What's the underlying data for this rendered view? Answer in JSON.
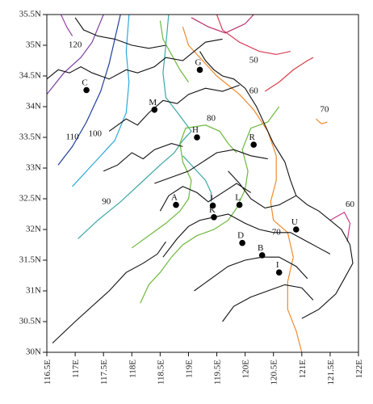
{
  "map": {
    "lon_range": [
      116.5,
      122.0
    ],
    "lat_range": [
      30.0,
      35.5
    ],
    "x_ticks": [
      {
        "v": 116.5,
        "label": "116.5E"
      },
      {
        "v": 117.0,
        "label": "117E"
      },
      {
        "v": 117.5,
        "label": "117.5E"
      },
      {
        "v": 118.0,
        "label": "118E"
      },
      {
        "v": 118.5,
        "label": "118.5E"
      },
      {
        "v": 119.0,
        "label": "119E"
      },
      {
        "v": 119.5,
        "label": "119.5E"
      },
      {
        "v": 120.0,
        "label": "120E"
      },
      {
        "v": 120.5,
        "label": "120.5E"
      },
      {
        "v": 121.0,
        "label": "121E"
      },
      {
        "v": 121.5,
        "label": "121.5E"
      },
      {
        "v": 122.0,
        "label": "122E"
      }
    ],
    "y_ticks": [
      {
        "v": 30.0,
        "label": "30N"
      },
      {
        "v": 30.5,
        "label": "30.5N"
      },
      {
        "v": 31.0,
        "label": "31N"
      },
      {
        "v": 31.5,
        "label": "31.5N"
      },
      {
        "v": 32.0,
        "label": "32N"
      },
      {
        "v": 32.5,
        "label": "32.5N"
      },
      {
        "v": 33.0,
        "label": "33N"
      },
      {
        "v": 33.5,
        "label": "33.5N"
      },
      {
        "v": 34.0,
        "label": "34N"
      },
      {
        "v": 34.5,
        "label": "34.5N"
      },
      {
        "v": 35.0,
        "label": "35N"
      },
      {
        "v": 35.5,
        "label": "35.5N"
      }
    ],
    "stations": [
      {
        "id": "C",
        "lon": 117.2,
        "lat": 34.27
      },
      {
        "id": "G",
        "lon": 119.2,
        "lat": 34.6
      },
      {
        "id": "M",
        "lon": 118.4,
        "lat": 33.95
      },
      {
        "id": "H",
        "lon": 119.15,
        "lat": 33.5
      },
      {
        "id": "R",
        "lon": 120.15,
        "lat": 33.38
      },
      {
        "id": "A",
        "lon": 118.78,
        "lat": 32.4
      },
      {
        "id": "J",
        "lon": 119.43,
        "lat": 32.39
      },
      {
        "id": "K",
        "lon": 119.45,
        "lat": 32.2
      },
      {
        "id": "L",
        "lon": 119.9,
        "lat": 32.4
      },
      {
        "id": "U",
        "lon": 120.9,
        "lat": 32.0
      },
      {
        "id": "D",
        "lon": 119.95,
        "lat": 31.78
      },
      {
        "id": "B",
        "lon": 120.3,
        "lat": 31.58
      },
      {
        "id": "I",
        "lon": 120.6,
        "lat": 31.3
      }
    ],
    "contours": [
      {
        "label": "120",
        "color": "#7b3fa0",
        "points": [
          [
            116.5,
            34.2
          ],
          [
            116.8,
            34.55
          ],
          [
            117.1,
            34.8
          ],
          [
            117.3,
            35.05
          ],
          [
            117.5,
            35.5
          ]
        ],
        "label_at": [
          117.0,
          35.0
        ]
      },
      {
        "label": "",
        "color": "#9a3fa8",
        "points": [
          [
            116.75,
            35.5
          ],
          [
            116.85,
            35.3
          ],
          [
            116.95,
            35.15
          ]
        ],
        "label_at": null
      },
      {
        "label": "110",
        "color": "#1f3f9e",
        "points": [
          [
            116.7,
            33.05
          ],
          [
            116.95,
            33.35
          ],
          [
            117.2,
            33.75
          ],
          [
            117.45,
            34.25
          ],
          [
            117.6,
            34.7
          ],
          [
            117.7,
            35.1
          ],
          [
            117.8,
            35.5
          ]
        ],
        "label_at": [
          116.95,
          33.5
        ]
      },
      {
        "label": "100",
        "color": "#2fa8d8",
        "points": [
          [
            116.95,
            32.7
          ],
          [
            117.35,
            33.1
          ],
          [
            117.7,
            33.45
          ],
          [
            117.9,
            33.9
          ],
          [
            117.95,
            34.4
          ],
          [
            117.9,
            34.9
          ],
          [
            117.95,
            35.5
          ]
        ],
        "label_at": [
          117.35,
          33.55
        ]
      },
      {
        "label": "90",
        "color": "#3fa6a6",
        "points": [
          [
            117.05,
            31.85
          ],
          [
            117.4,
            32.15
          ],
          [
            117.8,
            32.45
          ],
          [
            118.15,
            32.75
          ],
          [
            118.5,
            33.05
          ],
          [
            118.75,
            33.25
          ],
          [
            118.9,
            33.45
          ],
          [
            119.05,
            33.6
          ],
          [
            118.85,
            33.85
          ],
          [
            118.6,
            34.15
          ],
          [
            118.55,
            34.55
          ],
          [
            118.6,
            35.0
          ],
          [
            118.65,
            35.5
          ]
        ],
        "label_at": [
          117.55,
          32.45
        ]
      },
      {
        "label": "",
        "color": "#3fa6a6",
        "points": [
          [
            118.9,
            33.2
          ],
          [
            119.1,
            33.0
          ],
          [
            119.3,
            32.8
          ],
          [
            119.4,
            32.6
          ],
          [
            119.4,
            32.45
          ]
        ],
        "label_at": null
      },
      {
        "label": "80",
        "color": "#6fb83f",
        "points": [
          [
            118.0,
            31.7
          ],
          [
            118.3,
            31.9
          ],
          [
            118.6,
            32.1
          ],
          [
            118.85,
            32.3
          ],
          [
            119.0,
            32.5
          ],
          [
            119.05,
            32.8
          ],
          [
            118.9,
            33.1
          ],
          [
            118.85,
            33.4
          ],
          [
            118.95,
            33.65
          ],
          [
            119.3,
            33.7
          ],
          [
            119.55,
            33.6
          ],
          [
            119.7,
            33.4
          ],
          [
            119.85,
            33.25
          ]
        ],
        "label_at": [
          119.4,
          33.8
        ]
      },
      {
        "label": "",
        "color": "#6fb83f",
        "points": [
          [
            118.15,
            30.8
          ],
          [
            118.3,
            31.1
          ],
          [
            118.5,
            31.3
          ],
          [
            118.7,
            31.55
          ],
          [
            118.9,
            31.75
          ],
          [
            119.15,
            31.9
          ],
          [
            119.45,
            32.0
          ],
          [
            119.7,
            32.15
          ],
          [
            119.85,
            32.35
          ],
          [
            120.0,
            32.65
          ],
          [
            120.05,
            32.95
          ],
          [
            119.95,
            33.3
          ],
          [
            120.1,
            33.65
          ],
          [
            120.4,
            33.75
          ],
          [
            120.6,
            34.0
          ]
        ],
        "label_at": [
          118.65,
          31.8
        ]
      },
      {
        "label": "",
        "color": "#6fb83f",
        "points": [
          [
            118.5,
            35.4
          ],
          [
            118.55,
            35.1
          ],
          [
            118.7,
            34.85
          ],
          [
            118.85,
            34.6
          ],
          [
            119.0,
            34.4
          ]
        ],
        "label_at": null
      },
      {
        "label": "70",
        "color": "#f08a2a",
        "points": [
          [
            118.9,
            35.3
          ],
          [
            119.0,
            35.0
          ],
          [
            119.2,
            34.8
          ],
          [
            119.5,
            34.5
          ],
          [
            119.9,
            34.2
          ],
          [
            120.15,
            33.95
          ],
          [
            120.4,
            33.6
          ],
          [
            120.55,
            33.2
          ],
          [
            120.55,
            32.8
          ],
          [
            120.45,
            32.45
          ],
          [
            120.5,
            32.15
          ],
          [
            120.75,
            31.95
          ],
          [
            120.85,
            31.55
          ],
          [
            120.75,
            31.15
          ],
          [
            120.75,
            30.7
          ],
          [
            120.9,
            30.35
          ],
          [
            121.0,
            30.0
          ]
        ],
        "label_at": [
          120.55,
          31.95
        ]
      },
      {
        "label": "70",
        "color": "#f08a2a",
        "points": [
          [
            121.25,
            33.8
          ],
          [
            121.35,
            33.72
          ],
          [
            121.45,
            33.75
          ]
        ],
        "label_at": [
          121.4,
          33.95
        ]
      },
      {
        "label": "60",
        "color": "#d83f5a",
        "points": [
          [
            119.5,
            35.5
          ],
          [
            119.6,
            35.25
          ],
          [
            119.9,
            35.05
          ],
          [
            120.25,
            34.9
          ],
          [
            120.55,
            34.85
          ],
          [
            120.8,
            34.9
          ]
        ],
        "label_at": null
      },
      {
        "label": "60",
        "color": "#c83f8a",
        "points": [
          [
            121.5,
            32.15
          ],
          [
            121.75,
            32.28
          ],
          [
            121.85,
            32.1
          ],
          [
            121.8,
            31.8
          ]
        ],
        "label_at": [
          121.85,
          32.4
        ]
      },
      {
        "label": "50",
        "color": "#d8404a",
        "points": [
          [
            120.35,
            34.25
          ],
          [
            120.6,
            34.4
          ],
          [
            120.85,
            34.6
          ],
          [
            121.1,
            34.75
          ],
          [
            121.2,
            34.8
          ]
        ],
        "label_at": null
      },
      {
        "label": "",
        "color": "#b8306a",
        "points": [
          [
            119.05,
            35.45
          ],
          [
            119.35,
            35.3
          ],
          [
            119.65,
            35.2
          ],
          [
            120.0,
            35.35
          ],
          [
            120.15,
            35.5
          ]
        ],
        "label_at": null
      }
    ],
    "contour_texts": [
      {
        "text": "50",
        "lon": 120.15,
        "lat": 34.75
      },
      {
        "text": "60",
        "lon": 120.15,
        "lat": 34.25
      }
    ]
  }
}
